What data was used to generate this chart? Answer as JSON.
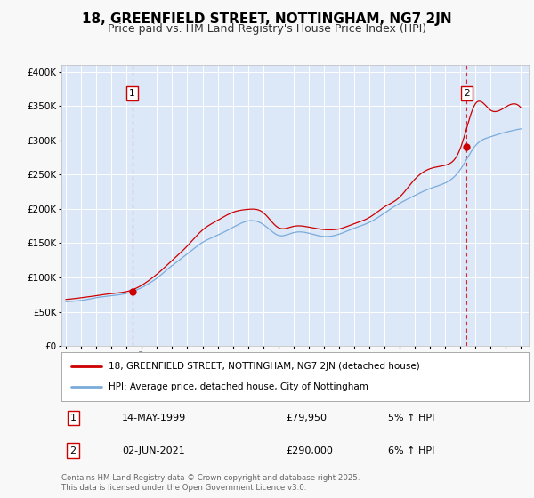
{
  "title": "18, GREENFIELD STREET, NOTTINGHAM, NG7 2JN",
  "subtitle": "Price paid vs. HM Land Registry's House Price Index (HPI)",
  "background_color": "#f8f8f8",
  "plot_bg_color": "#dce8f8",
  "ylabel_vals": [
    0,
    50000,
    100000,
    150000,
    200000,
    250000,
    300000,
    350000,
    400000
  ],
  "ylim": [
    0,
    410000
  ],
  "xlim_start": 1994.7,
  "xlim_end": 2025.5,
  "hpi_monthly_t": [],
  "hpi_monthly_v": [],
  "red_monthly_t": [],
  "red_monthly_v": [],
  "sale1_t": 1999.37,
  "sale1_v": 79950,
  "sale2_t": 2021.42,
  "sale2_v": 290000,
  "sale1_label": "1",
  "sale2_label": "2",
  "sale1_date_str": "14-MAY-1999",
  "sale1_price_str": "£79,950",
  "sale1_hpi_str": "5% ↑ HPI",
  "sale2_date_str": "02-JUN-2021",
  "sale2_price_str": "£290,000",
  "sale2_hpi_str": "6% ↑ HPI",
  "red_line_color": "#cc0000",
  "blue_line_color": "#7aabdb",
  "vline_color": "#cc0000",
  "legend_label_red": "18, GREENFIELD STREET, NOTTINGHAM, NG7 2JN (detached house)",
  "legend_label_blue": "HPI: Average price, detached house, City of Nottingham",
  "footer": "Contains HM Land Registry data © Crown copyright and database right 2025.\nThis data is licensed under the Open Government Licence v3.0.",
  "grid_color": "#ffffff",
  "title_fontsize": 11,
  "subtitle_fontsize": 9,
  "tick_fontsize": 7.5,
  "year_anchor_t": [
    1995.0,
    1996.0,
    1997.0,
    1998.0,
    1999.0,
    2000.0,
    2001.0,
    2002.0,
    2003.0,
    2004.0,
    2005.0,
    2006.0,
    2007.0,
    2008.0,
    2009.0,
    2010.0,
    2011.0,
    2012.0,
    2013.0,
    2014.0,
    2015.0,
    2016.0,
    2017.0,
    2018.0,
    2019.0,
    2020.0,
    2021.0,
    2022.0,
    2023.0,
    2024.0,
    2025.0
  ],
  "hpi_anchor_v": [
    65000,
    67000,
    70000,
    73000,
    77000,
    86000,
    100000,
    118000,
    135000,
    152000,
    163000,
    175000,
    185000,
    180000,
    164000,
    168000,
    167000,
    162000,
    165000,
    173000,
    182000,
    196000,
    210000,
    222000,
    232000,
    240000,
    260000,
    295000,
    308000,
    315000,
    320000
  ],
  "red_anchor_v": [
    68000,
    70000,
    73000,
    76000,
    79000,
    88000,
    104000,
    124000,
    145000,
    168000,
    182000,
    193000,
    197000,
    192000,
    170000,
    172000,
    171000,
    167000,
    168000,
    176000,
    185000,
    200000,
    214000,
    240000,
    255000,
    260000,
    285000,
    350000,
    340000,
    345000,
    343000
  ]
}
